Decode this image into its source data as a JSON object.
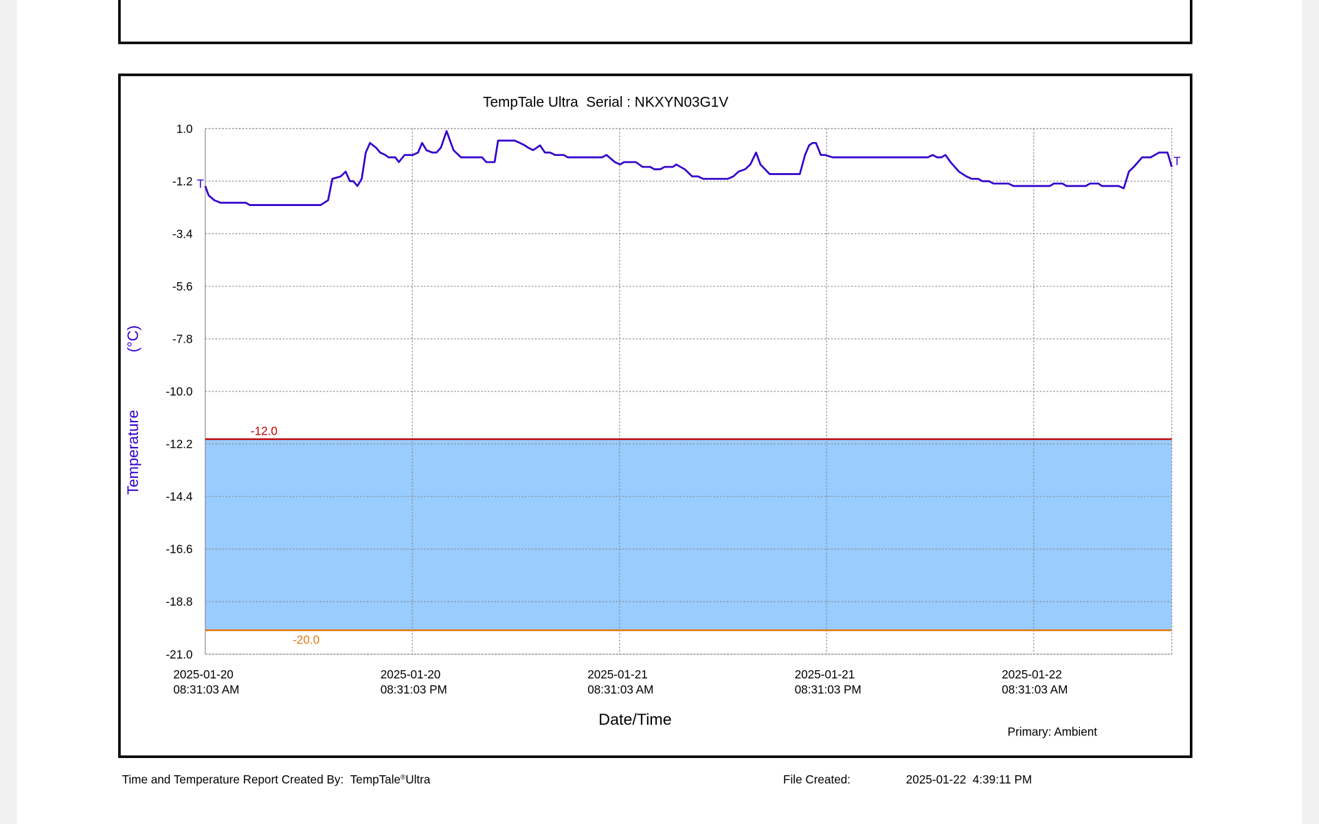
{
  "chart_data": {
    "type": "line",
    "title": "TempTale Ultra  Serial : NKXYN03G1V",
    "x_label": "Date/Time",
    "y_label": "Temperature",
    "y_unit": "(°C)",
    "legend": "Primary: Ambient",
    "start_marker": "T",
    "end_marker": "T",
    "xlim": [
      "2025-01-20 08:31:03",
      "2025-01-22 16:31:03"
    ],
    "xticks": [
      {
        "value": "2025-01-20 08:31:03",
        "label": [
          "2025-01-20",
          "08:31:03 AM"
        ]
      },
      {
        "value": "2025-01-20 20:31:03",
        "label": [
          "2025-01-20",
          "08:31:03 PM"
        ]
      },
      {
        "value": "2025-01-21 08:31:03",
        "label": [
          "2025-01-21",
          "08:31:03 AM"
        ]
      },
      {
        "value": "2025-01-21 20:31:03",
        "label": [
          "2025-01-21",
          "08:31:03 PM"
        ]
      },
      {
        "value": "2025-01-22 08:31:03",
        "label": [
          "2025-01-22",
          "08:31:03 AM"
        ]
      }
    ],
    "ylim": [
      -21,
      1
    ],
    "yticks": [
      {
        "value": 1,
        "label": "1.0"
      },
      -1.2,
      -3.4,
      -5.6,
      -7.8,
      {
        "value": -10,
        "label": "-10.0"
      },
      -12.2,
      -14.4,
      -16.6,
      -18.8,
      {
        "value": -21,
        "label": "-21.0"
      }
    ],
    "grid": true,
    "band_color": "#99ccff",
    "limits": [
      {
        "value": -12,
        "label": "-12.0",
        "color": "#c00000"
      },
      {
        "value": -20,
        "label": "-20.0",
        "color": "#e8780f"
      }
    ],
    "x": [
      "2025-01-20 08:31",
      "2025-01-20 08:43",
      "2025-01-20 09:03",
      "2025-01-20 09:24",
      "2025-01-20 10:51",
      "2025-01-20 11:06",
      "2025-01-20 15:12",
      "2025-01-20 15:38",
      "2025-01-20 15:53",
      "2025-01-20 16:22",
      "2025-01-20 16:39",
      "2025-01-20 16:54",
      "2025-01-20 17:06",
      "2025-01-20 17:20",
      "2025-01-20 17:35",
      "2025-01-20 17:49",
      "2025-01-20 18:04",
      "2025-01-20 18:25",
      "2025-01-20 18:39",
      "2025-01-20 18:57",
      "2025-01-20 19:08",
      "2025-01-20 19:32",
      "2025-01-20 19:44",
      "2025-01-20 20:04",
      "2025-01-20 20:33",
      "2025-01-20 20:51",
      "2025-01-20 21:05",
      "2025-01-20 21:20",
      "2025-01-20 21:40",
      "2025-01-20 21:55",
      "2025-01-20 22:10",
      "2025-01-20 22:30",
      "2025-01-20 22:54",
      "2025-01-20 23:20",
      "2025-01-21 00:33",
      "2025-01-21 00:48",
      "2025-01-21 01:17",
      "2025-01-21 01:29",
      "2025-01-21 01:46",
      "2025-01-21 01:58",
      "2025-01-21 02:12",
      "2025-01-21 02:27",
      "2025-01-21 02:45",
      "2025-01-21 03:02",
      "2025-01-21 03:14",
      "2025-01-21 03:31",
      "2025-01-21 03:55",
      "2025-01-21 04:12",
      "2025-01-21 04:30",
      "2025-01-21 04:47",
      "2025-01-21 05:17",
      "2025-01-21 05:31",
      "2025-01-21 06:00",
      "2025-01-21 06:15",
      "2025-01-21 07:31",
      "2025-01-21 07:46",
      "2025-01-21 08:15",
      "2025-01-21 08:33",
      "2025-01-21 08:47",
      "2025-01-21 09:28",
      "2025-01-21 09:51",
      "2025-01-21 10:18",
      "2025-01-21 10:32",
      "2025-01-21 10:53",
      "2025-01-21 11:08",
      "2025-01-21 11:37",
      "2025-01-21 11:48",
      "2025-01-21 12:18",
      "2025-01-21 12:44",
      "2025-01-21 13:04",
      "2025-01-21 13:22",
      "2025-01-21 14:47",
      "2025-01-21 15:07",
      "2025-01-21 15:25",
      "2025-01-21 15:48",
      "2025-01-21 16:06",
      "2025-01-21 16:26",
      "2025-01-21 16:41",
      "2025-01-21 17:13",
      "2025-01-21 18:44",
      "2025-01-21 18:58",
      "2025-01-21 19:16",
      "2025-01-21 19:30",
      "2025-01-21 19:42",
      "2025-01-21 19:54",
      "2025-01-21 20:11",
      "2025-01-21 20:26",
      "2025-01-21 20:52",
      "2025-01-22 00:08",
      "2025-01-22 00:23",
      "2025-01-22 00:35",
      "2025-01-22 01:07",
      "2025-01-22 01:18",
      "2025-01-22 01:33",
      "2025-01-22 01:48",
      "2025-01-22 02:08",
      "2025-01-22 02:23",
      "2025-01-22 02:40",
      "2025-01-22 02:55",
      "2025-01-22 03:10",
      "2025-01-22 03:24",
      "2025-01-22 03:42",
      "2025-01-22 04:11",
      "2025-01-22 04:37",
      "2025-01-22 04:55",
      "2025-01-22 05:18",
      "2025-01-22 05:33",
      "2025-01-22 05:56",
      "2025-01-22 06:11",
      "2025-01-22 07:03",
      "2025-01-22 07:21",
      "2025-01-22 09:27",
      "2025-01-22 09:41",
      "2025-01-22 10:11",
      "2025-01-22 10:25",
      "2025-01-22 11:32",
      "2025-01-22 11:47",
      "2025-01-22 12:16",
      "2025-01-22 12:28",
      "2025-01-22 13:26",
      "2025-01-22 13:44",
      "2025-01-22 14:02",
      "2025-01-22 14:19",
      "2025-01-22 14:48",
      "2025-01-22 15:18",
      "2025-01-22 15:47",
      "2025-01-22 16:16",
      "2025-01-22 16:31"
    ],
    "series": [
      {
        "name": "Ambient",
        "color": "#3300cc",
        "values": [
          -1.4,
          -1.8,
          -2.0,
          -2.1,
          -2.1,
          -2.2,
          -2.2,
          -2.0,
          -1.1,
          -1.0,
          -0.8,
          -1.2,
          -1.2,
          -1.4,
          -1.1,
          0.0,
          0.4,
          0.2,
          0.0,
          -0.1,
          -0.2,
          -0.2,
          -0.4,
          -0.1,
          -0.1,
          0.0,
          0.4,
          0.1,
          0.0,
          0.0,
          0.2,
          0.9,
          0.1,
          -0.2,
          -0.2,
          -0.4,
          -0.4,
          0.5,
          0.5,
          0.5,
          0.5,
          0.5,
          0.4,
          0.3,
          0.2,
          0.1,
          0.3,
          0.0,
          0.0,
          -0.1,
          -0.1,
          -0.2,
          -0.2,
          -0.2,
          -0.2,
          -0.1,
          -0.4,
          -0.5,
          -0.4,
          -0.4,
          -0.6,
          -0.6,
          -0.7,
          -0.7,
          -0.6,
          -0.6,
          -0.5,
          -0.7,
          -1.0,
          -1.0,
          -1.1,
          -1.1,
          -1.0,
          -0.8,
          -0.7,
          -0.5,
          0.0,
          -0.5,
          -0.9,
          -0.9,
          -0.9,
          -0.1,
          0.3,
          0.4,
          0.4,
          -0.1,
          -0.1,
          -0.2,
          -0.2,
          -0.2,
          -0.2,
          -0.2,
          -0.2,
          -0.2,
          -0.2,
          -0.2,
          -0.2,
          -0.1,
          -0.2,
          -0.2,
          -0.1,
          -0.4,
          -0.8,
          -1.0,
          -1.1,
          -1.1,
          -1.2,
          -1.2,
          -1.3,
          -1.3,
          -1.4,
          -1.4,
          -1.3,
          -1.3,
          -1.4,
          -1.4,
          -1.3,
          -1.3,
          -1.4,
          -1.4,
          -1.5,
          -0.8,
          -0.6,
          -0.2,
          -0.2,
          0.0,
          0.0,
          -0.6
        ]
      }
    ]
  },
  "footer": {
    "created_by": "Time and Temperature Report Created By:  ",
    "product": "TempTale",
    "registered": "®",
    "product_suffix": "Ultra",
    "file_created_label": "File Created:",
    "file_created": "2025-01-22  4:39:11 PM"
  }
}
